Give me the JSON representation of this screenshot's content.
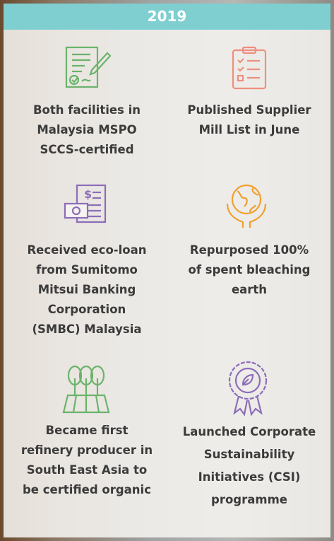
{
  "header": {
    "title": "2019"
  },
  "items": [
    {
      "lines": [
        "Both facilities in",
        "Malaysia MSPO",
        "SCCS-certified"
      ]
    },
    {
      "lines": [
        "Published Supplier",
        "Mill List in June"
      ]
    },
    {
      "lines": [
        "Received eco-loan",
        "from Sumitomo",
        "Mitsui Banking",
        "Corporation",
        "(SMBC) Malaysia"
      ]
    },
    {
      "lines": [
        "Repurposed 100%",
        "of spent bleaching",
        "earth"
      ]
    },
    {
      "lines": [
        "Became first",
        "refinery producer in",
        "South East Asia to",
        "be certified organic"
      ]
    },
    {
      "lines": [
        "Launched Corporate",
        "Sustainability",
        "Initiatives (CSI)",
        "programme"
      ]
    }
  ]
}
